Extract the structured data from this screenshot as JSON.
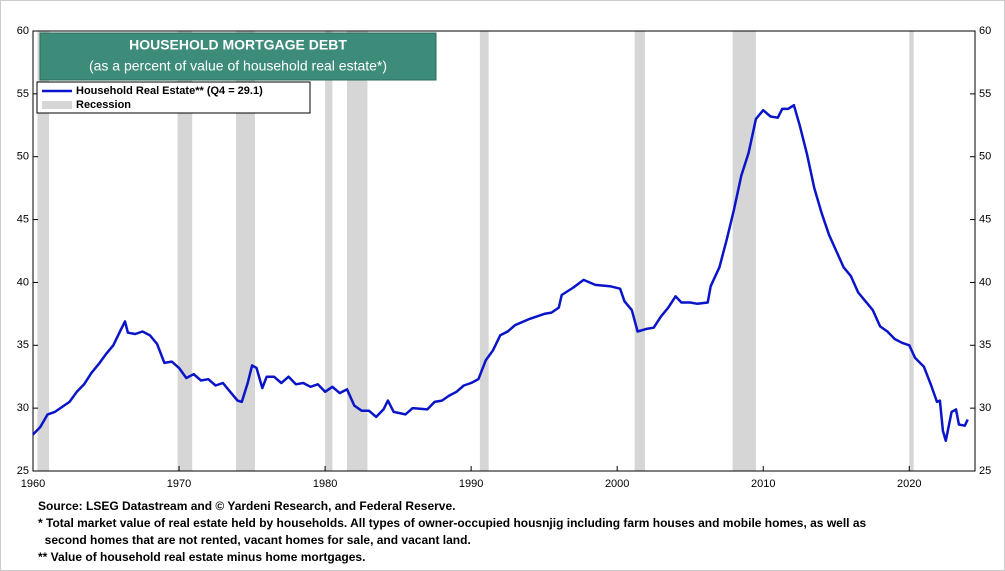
{
  "chart_data": {
    "type": "line",
    "title": "HOUSEHOLD MORTGAGE DEBT",
    "subtitle": "(as a percent of value of  household real estate*)",
    "series": [
      {
        "name": "Household Real Estate** (Q4 = 29.1)",
        "color": "#0a14c8",
        "x": [
          1960.0,
          1960.5,
          1961.0,
          1961.5,
          1962.0,
          1962.5,
          1963.0,
          1963.5,
          1964.0,
          1964.5,
          1965.0,
          1965.5,
          1966.0,
          1966.3,
          1966.5,
          1967.0,
          1967.5,
          1968.0,
          1968.5,
          1969.0,
          1969.5,
          1970.0,
          1970.5,
          1971.0,
          1971.5,
          1972.0,
          1972.5,
          1973.0,
          1973.5,
          1974.0,
          1974.3,
          1974.7,
          1975.0,
          1975.3,
          1975.7,
          1976.0,
          1976.5,
          1977.0,
          1977.5,
          1978.0,
          1978.5,
          1979.0,
          1979.5,
          1980.0,
          1980.5,
          1981.0,
          1981.5,
          1982.0,
          1982.5,
          1983.0,
          1983.5,
          1984.0,
          1984.3,
          1984.7,
          1985.5,
          1986.0,
          1987.0,
          1987.5,
          1988.0,
          1988.5,
          1989.0,
          1989.5,
          1990.0,
          1990.5,
          1991.0,
          1991.5,
          1992.0,
          1992.5,
          1993.0,
          1994.0,
          1995.0,
          1995.5,
          1996.0,
          1996.2,
          1997.0,
          1997.7,
          1998.5,
          1999.5,
          2000.2,
          2000.5,
          2001.0,
          2001.4,
          2002.0,
          2002.5,
          2003.0,
          2003.5,
          2004.0,
          2004.4,
          2005.0,
          2005.5,
          2006.2,
          2006.4,
          2007.0,
          2007.5,
          2008.0,
          2008.5,
          2009.0,
          2009.5,
          2010.0,
          2010.5,
          2011.0,
          2011.3,
          2011.7,
          2012.1,
          2012.5,
          2013.0,
          2013.5,
          2014.0,
          2014.5,
          2015.0,
          2015.5,
          2016.0,
          2016.5,
          2017.0,
          2017.5,
          2018.0,
          2018.5,
          2019.0,
          2019.5,
          2020.0,
          2020.4,
          2021.0,
          2021.5,
          2021.9,
          2022.1,
          2022.3,
          2022.5,
          2022.9,
          2023.2,
          2023.4,
          2023.8,
          2024.0
        ],
        "values": [
          27.9,
          28.5,
          29.5,
          29.7,
          30.1,
          30.5,
          31.3,
          31.9,
          32.8,
          33.5,
          34.3,
          35.0,
          36.2,
          36.9,
          36.0,
          35.9,
          36.1,
          35.8,
          35.1,
          33.6,
          33.7,
          33.2,
          32.4,
          32.7,
          32.2,
          32.3,
          31.8,
          32.0,
          31.3,
          30.6,
          30.5,
          32.0,
          33.4,
          33.2,
          31.6,
          32.5,
          32.5,
          32.0,
          32.5,
          31.9,
          32.0,
          31.7,
          31.9,
          31.3,
          31.7,
          31.2,
          31.5,
          30.2,
          29.8,
          29.8,
          29.3,
          29.9,
          30.6,
          29.7,
          29.5,
          30.0,
          29.9,
          30.5,
          30.6,
          31.0,
          31.3,
          31.8,
          32.0,
          32.3,
          33.8,
          34.6,
          35.8,
          36.1,
          36.6,
          37.1,
          37.5,
          37.6,
          38.0,
          39.0,
          39.6,
          40.2,
          39.8,
          39.7,
          39.5,
          38.5,
          37.8,
          36.1,
          36.3,
          36.4,
          37.3,
          38.0,
          38.9,
          38.4,
          38.4,
          38.3,
          38.4,
          39.7,
          41.2,
          43.4,
          45.8,
          48.5,
          50.3,
          53.0,
          53.7,
          53.2,
          53.1,
          53.8,
          53.8,
          54.1,
          52.5,
          50.2,
          47.5,
          45.5,
          43.8,
          42.5,
          41.2,
          40.5,
          39.2,
          38.5,
          37.8,
          36.5,
          36.1,
          35.5,
          35.2,
          35.0,
          34.0,
          33.3,
          31.8,
          30.5,
          30.6,
          28.2,
          27.4,
          29.7,
          29.9,
          28.7,
          28.6,
          29.1
        ]
      }
    ],
    "recession_name": "Recession",
    "recession_color": "#d6d6d6",
    "recessions": [
      [
        1960.3,
        1961.1
      ],
      [
        1969.9,
        1970.9
      ],
      [
        1973.9,
        1975.2
      ],
      [
        1980.0,
        1980.5
      ],
      [
        1981.5,
        1982.9
      ],
      [
        1990.6,
        1991.2
      ],
      [
        2001.2,
        2001.9
      ],
      [
        2007.9,
        2009.5
      ],
      [
        2020.0,
        2020.3
      ]
    ],
    "xlim": [
      1960,
      2024.5
    ],
    "xticks": [
      1960,
      1970,
      1980,
      1990,
      2000,
      2010,
      2020
    ],
    "ylim": [
      25,
      60
    ],
    "yticks": [
      25,
      30,
      35,
      40,
      45,
      50,
      55,
      60
    ],
    "y2lim": [
      25,
      60
    ],
    "y2ticks": [
      25,
      30,
      35,
      40,
      45,
      50,
      55,
      60
    ],
    "notes": [
      "Source: LSEG Datastream and © Yardeni Research, and Federal Reserve.",
      "* Total market value of real estate held by households. All types of owner-occupied housnjig including farm houses and mobile homes, as well as",
      "  second homes that are not rented, vacant homes for sale, and vacant land.",
      "** Value of household real estate minus home mortgages."
    ]
  }
}
